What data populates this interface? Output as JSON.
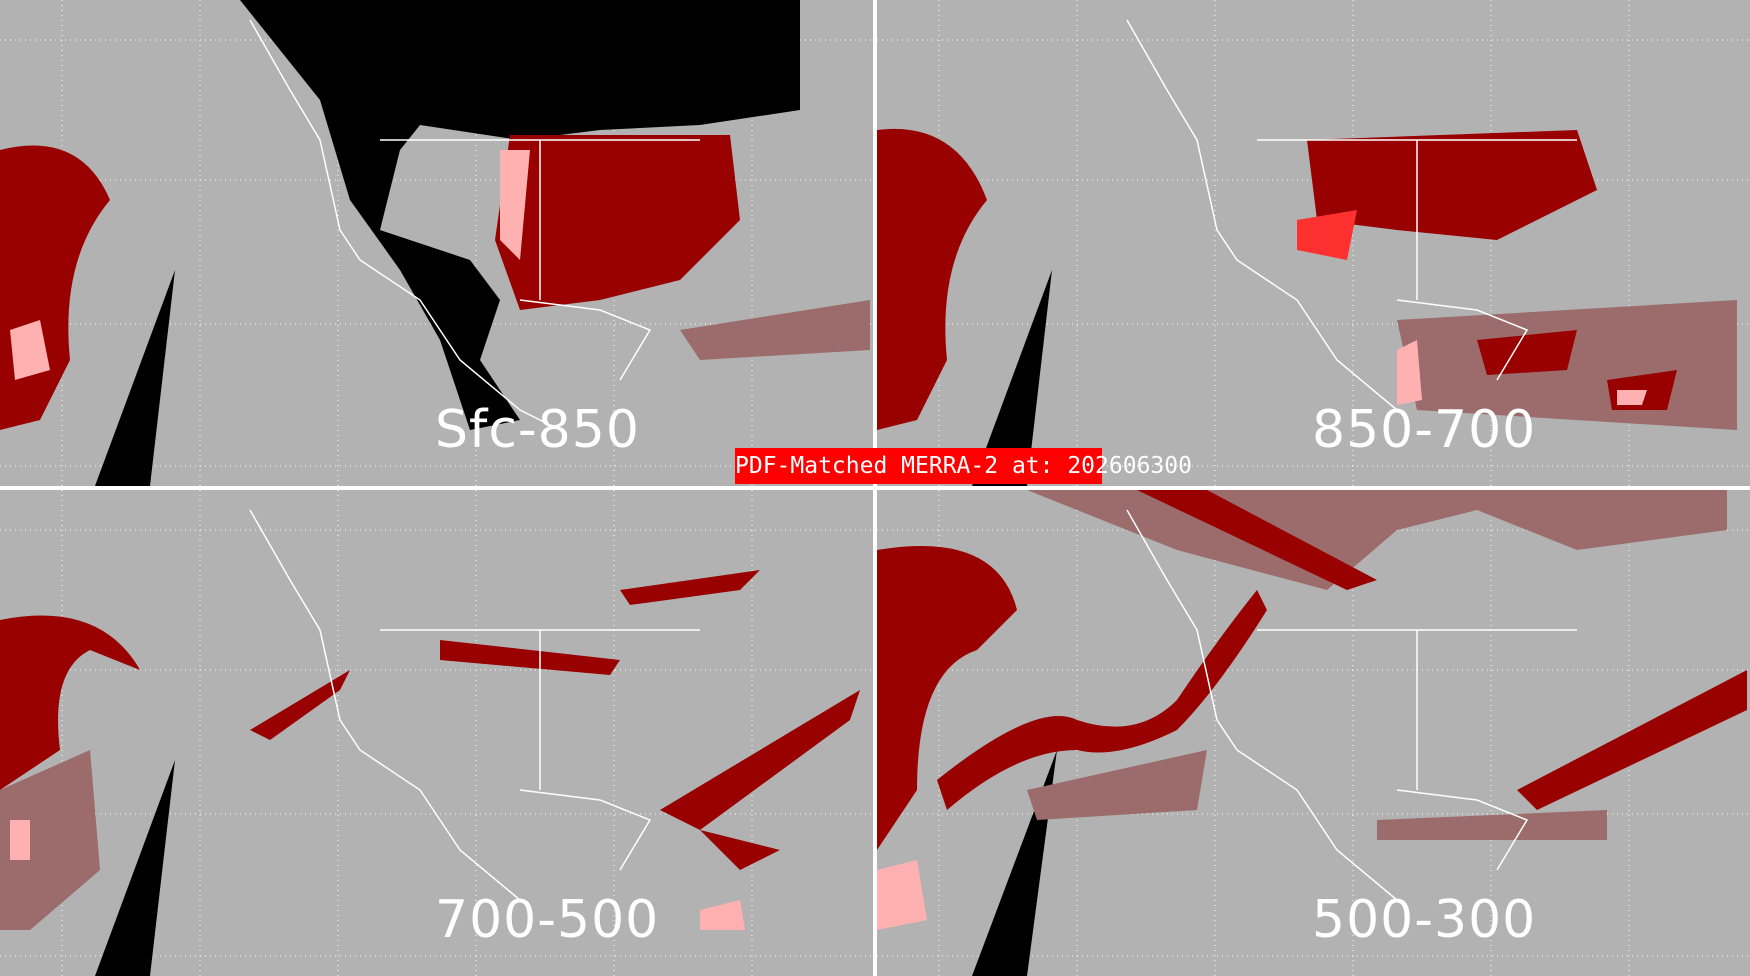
{
  "title": "PDF-Matched MERRA-2 at: 202606300",
  "colors": {
    "background": "#b2b2b2",
    "light_red": "#9c6b6b",
    "dark_red": "#990000",
    "bright_red": "#ff0000",
    "pink": "#ffb0b0",
    "no_data": "#000000",
    "coastline": "#ffffff"
  },
  "panels": [
    {
      "label": "Sfc-850"
    },
    {
      "label": "850-700"
    },
    {
      "label": "700-500"
    },
    {
      "label": "500-300"
    }
  ]
}
